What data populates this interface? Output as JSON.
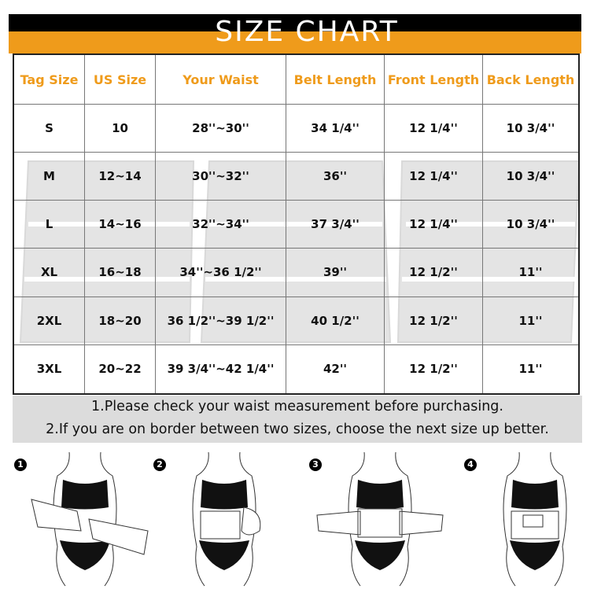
{
  "title": "SIZE CHART",
  "colors": {
    "accent": "#ef9b1b",
    "header_bar": "#000000",
    "notes_bg": "#dcdcdc"
  },
  "table": {
    "headers": [
      "Tag Size",
      "US Size",
      "Your Waist",
      "Belt Length",
      "Front Length",
      "Back Length"
    ],
    "rows": [
      [
        "S",
        "10",
        "28''~30''",
        "34 1/4''",
        "12 1/4''",
        "10 3/4''"
      ],
      [
        "M",
        "12~14",
        "30''~32''",
        "36''",
        "12 1/4''",
        "10 3/4''"
      ],
      [
        "L",
        "14~16",
        "32''~34''",
        "37 3/4''",
        "12 1/4''",
        "10 3/4''"
      ],
      [
        "XL",
        "16~18",
        "34''~36 1/2''",
        "39''",
        "12 1/2''",
        "11''"
      ],
      [
        "2XL",
        "18~20",
        "36 1/2''~39 1/2''",
        "40 1/2''",
        "12 1/2''",
        "11''"
      ],
      [
        "3XL",
        "20~22",
        "39 3/4''~42 1/4''",
        "42''",
        "12 1/2''",
        "11''"
      ]
    ]
  },
  "notes": [
    "1.Please check your waist measurement before purchasing.",
    "2.If you are on border between two sizes, choose the next size up better."
  ],
  "steps": [
    "1",
    "2",
    "3",
    "4"
  ]
}
